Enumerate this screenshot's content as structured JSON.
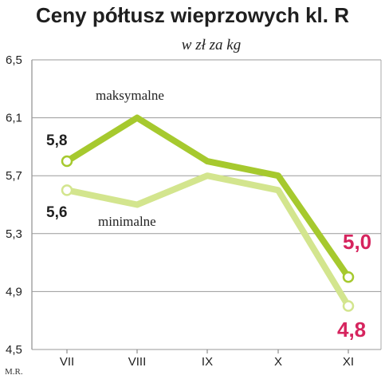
{
  "credit": "M.R.",
  "chart_data": {
    "type": "line",
    "title": "Ceny półtusz wieprzowych kl. R",
    "subtitle": "w zł za kg",
    "categories": [
      "VII",
      "VIII",
      "IX",
      "X",
      "XI"
    ],
    "ylim": [
      4.5,
      6.5
    ],
    "yticks": [
      "4,5",
      "4,9",
      "5,3",
      "5,7",
      "6,1",
      "6,5"
    ],
    "grid": true,
    "series": [
      {
        "name": "maksymalne",
        "values": [
          5.8,
          6.1,
          5.8,
          5.7,
          5.0
        ],
        "color": "#a6c92e",
        "labels": [
          "5,8",
          "",
          "",
          "",
          "5,0"
        ]
      },
      {
        "name": "minimalne",
        "values": [
          5.6,
          5.5,
          5.7,
          5.6,
          4.8
        ],
        "color": "#d3e58e",
        "labels": [
          "5,6",
          "",
          "",
          "",
          "4,8"
        ]
      }
    ],
    "label_colors": {
      "dark": "#1f1f1f",
      "accent": "#d6245e"
    }
  }
}
